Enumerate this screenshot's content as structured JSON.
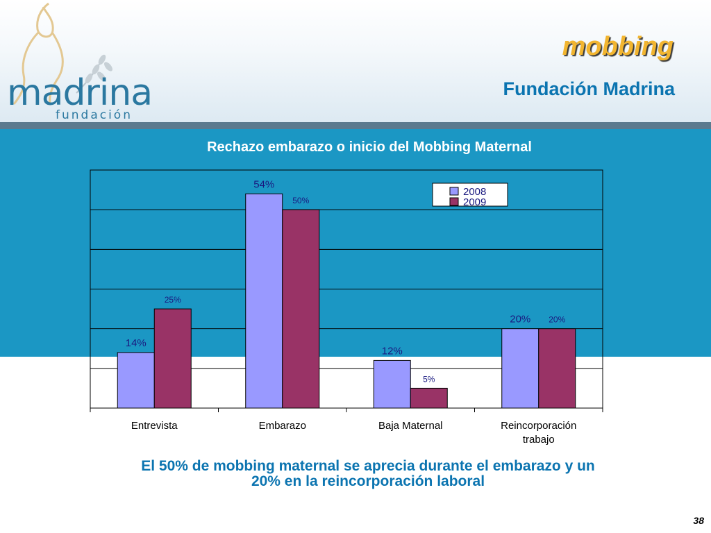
{
  "header": {
    "title": "mobbing",
    "subtitle": "Fundación Madrina",
    "logo_word": "madrina",
    "logo_sub": "fundación"
  },
  "colors": {
    "band": "#1b97c4",
    "series_2008": "#9999ff",
    "series_2009": "#993366",
    "title": "#f2b530",
    "subtitle": "#0b74b0"
  },
  "chart_data": {
    "type": "bar",
    "title": "Rechazo embarazo o inicio del  Mobbing Maternal",
    "categories": [
      "Entrevista",
      "Embarazo",
      "Baja Maternal",
      "Reincorporación trabajo"
    ],
    "category_lines": [
      [
        "Entrevista"
      ],
      [
        "Embarazo"
      ],
      [
        "Baja Maternal"
      ],
      [
        "Reincorporación",
        "trabajo"
      ]
    ],
    "series": [
      {
        "name": "2008",
        "values": [
          14,
          54,
          12,
          20
        ],
        "labels": [
          "14%",
          "54%",
          "12%",
          "20%"
        ]
      },
      {
        "name": "2009",
        "values": [
          25,
          50,
          5,
          20
        ],
        "labels": [
          "25%",
          "50%",
          "5%",
          "20%"
        ]
      }
    ],
    "ylim": [
      0,
      60
    ],
    "grid": true,
    "legend": "top-right",
    "xlabel": "",
    "ylabel": ""
  },
  "footnote": "El 50% de mobbing maternal se aprecia durante el embarazo y un 20% en la reincorporación laboral",
  "page_number": "38"
}
